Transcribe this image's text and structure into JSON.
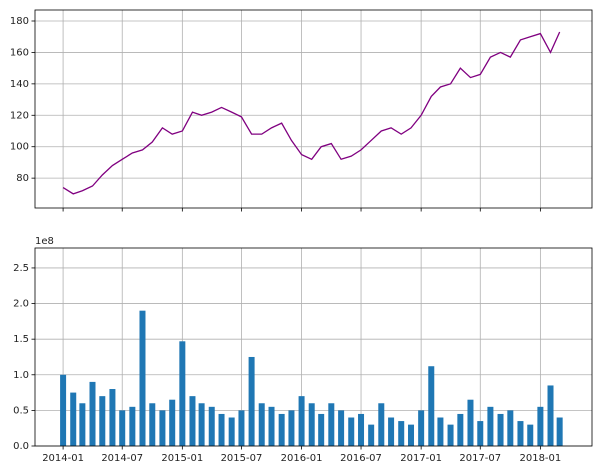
{
  "chart_data": [
    {
      "type": "line",
      "x": [
        "2014-01",
        "2014-02",
        "2014-03",
        "2014-04",
        "2014-05",
        "2014-06",
        "2014-07",
        "2014-08",
        "2014-09",
        "2014-10",
        "2014-11",
        "2014-12",
        "2015-01",
        "2015-02",
        "2015-03",
        "2015-04",
        "2015-05",
        "2015-06",
        "2015-07",
        "2015-08",
        "2015-09",
        "2015-10",
        "2015-11",
        "2015-12",
        "2016-01",
        "2016-02",
        "2016-03",
        "2016-04",
        "2016-05",
        "2016-06",
        "2016-07",
        "2016-08",
        "2016-09",
        "2016-10",
        "2016-11",
        "2016-12",
        "2017-01",
        "2017-02",
        "2017-03",
        "2017-04",
        "2017-05",
        "2017-06",
        "2017-07",
        "2017-08",
        "2017-09",
        "2017-10",
        "2017-11",
        "2017-12",
        "2018-01",
        "2018-02",
        "2018-03"
      ],
      "series": [
        {
          "color": "#800080",
          "values": [
            74,
            70,
            72,
            75,
            82,
            88,
            92,
            96,
            98,
            103,
            112,
            108,
            110,
            122,
            120,
            122,
            125,
            122,
            119,
            108,
            108,
            112,
            115,
            104,
            95,
            92,
            100,
            102,
            92,
            94,
            98,
            104,
            110,
            112,
            108,
            112,
            120,
            132,
            138,
            140,
            150,
            144,
            146,
            157,
            160,
            157,
            168,
            170,
            172,
            160,
            173
          ]
        }
      ],
      "xlim": [
        "2013-10-07",
        "2018-06-08"
      ],
      "ylim": [
        61,
        187
      ],
      "yticks": [
        80,
        100,
        120,
        140,
        160,
        180
      ],
      "grid": true
    },
    {
      "type": "bar",
      "x": [
        "2014-01",
        "2014-02",
        "2014-03",
        "2014-04",
        "2014-05",
        "2014-06",
        "2014-07",
        "2014-08",
        "2014-09",
        "2014-10",
        "2014-11",
        "2014-12",
        "2015-01",
        "2015-02",
        "2015-03",
        "2015-04",
        "2015-05",
        "2015-06",
        "2015-07",
        "2015-08",
        "2015-09",
        "2015-10",
        "2015-11",
        "2015-12",
        "2016-01",
        "2016-02",
        "2016-03",
        "2016-04",
        "2016-05",
        "2016-06",
        "2016-07",
        "2016-08",
        "2016-09",
        "2016-10",
        "2016-11",
        "2016-12",
        "2017-01",
        "2017-02",
        "2017-03",
        "2017-04",
        "2017-05",
        "2017-06",
        "2017-07",
        "2017-08",
        "2017-09",
        "2017-10",
        "2017-11",
        "2017-12",
        "2018-01",
        "2018-02",
        "2018-03"
      ],
      "series": [
        {
          "color": "#1f77b4",
          "values": [
            100000000,
            75000000,
            60000000,
            90000000,
            70000000,
            80000000,
            50000000,
            55000000,
            190000000,
            60000000,
            50000000,
            65000000,
            147000000,
            70000000,
            60000000,
            55000000,
            45000000,
            40000000,
            50000000,
            125000000,
            60000000,
            55000000,
            45000000,
            50000000,
            70000000,
            60000000,
            45000000,
            60000000,
            50000000,
            40000000,
            45000000,
            30000000,
            60000000,
            40000000,
            35000000,
            30000000,
            50000000,
            112000000,
            40000000,
            30000000,
            45000000,
            65000000,
            35000000,
            55000000,
            45000000,
            50000000,
            35000000,
            30000000,
            55000000,
            85000000,
            40000000
          ]
        }
      ],
      "xlim": [
        "2013-10-07",
        "2018-06-08"
      ],
      "xticks": [
        "2014-01",
        "2014-07",
        "2015-01",
        "2015-07",
        "2016-01",
        "2016-07",
        "2017-01",
        "2017-07",
        "2018-01"
      ],
      "ylim": [
        0,
        278000000
      ],
      "yticks": [
        {
          "value": 0,
          "label": "0.0"
        },
        {
          "value": 50000000,
          "label": "0.5"
        },
        {
          "value": 100000000,
          "label": "1.0"
        },
        {
          "value": 150000000,
          "label": "1.5"
        },
        {
          "value": 200000000,
          "label": "2.0"
        },
        {
          "value": 250000000,
          "label": "2.5"
        }
      ],
      "offset_label": "1e8",
      "grid": true
    }
  ]
}
